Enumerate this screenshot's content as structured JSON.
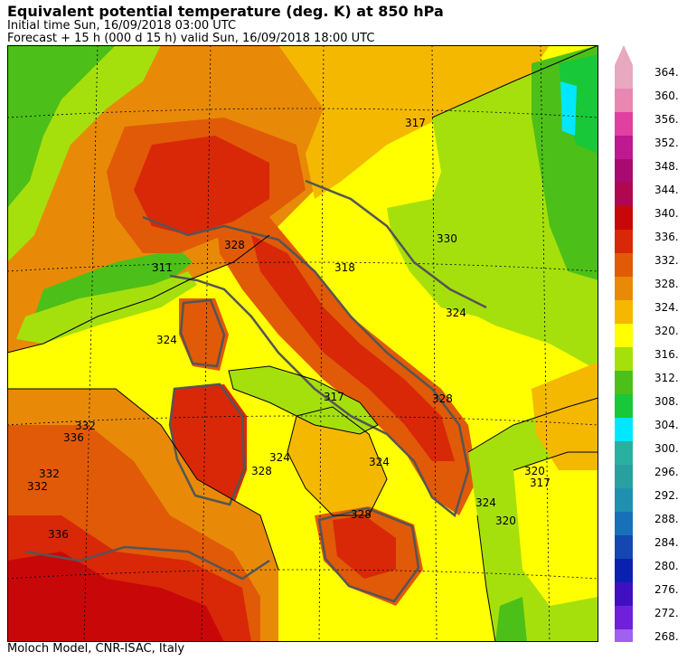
{
  "title": "Equivalent potential temperature (deg. K) at 850 hPa",
  "initial_time": "Initial time  Sun, 16/09/2018  03:00 UTC",
  "forecast": "Forecast  +  15 h  (000 d 15 h)  valid Sun, 16/09/2018 18:00 UTC",
  "footer": "Moloch Model, CNR-ISAC, Italy",
  "colorbar": {
    "levels": [
      {
        "label": "364.",
        "color": "#e8a8c0"
      },
      {
        "label": "360.",
        "color": "#e888b0"
      },
      {
        "label": "356.",
        "color": "#e040a0"
      },
      {
        "label": "352.",
        "color": "#c01890"
      },
      {
        "label": "348.",
        "color": "#a80a70"
      },
      {
        "label": "344.",
        "color": "#b00850"
      },
      {
        "label": "340.",
        "color": "#c80808"
      },
      {
        "label": "336.",
        "color": "#d82808"
      },
      {
        "label": "332.",
        "color": "#e05a08"
      },
      {
        "label": "328.",
        "color": "#e88a08"
      },
      {
        "label": "324.",
        "color": "#f4b800"
      },
      {
        "label": "320.",
        "color": "#ffff00"
      },
      {
        "label": "316.",
        "color": "#a6e00c"
      },
      {
        "label": "312.",
        "color": "#4cc018"
      },
      {
        "label": "308.",
        "color": "#18c838"
      },
      {
        "label": "304.",
        "color": "#00e8ff"
      },
      {
        "label": "300.",
        "color": "#2ab0a0"
      },
      {
        "label": "296.",
        "color": "#28a0a0"
      },
      {
        "label": "292.",
        "color": "#2090b0"
      },
      {
        "label": "288.",
        "color": "#1870b8"
      },
      {
        "label": "284.",
        "color": "#1448b0"
      },
      {
        "label": "280.",
        "color": "#0c20b0"
      },
      {
        "label": "276.",
        "color": "#4010c0"
      },
      {
        "label": "272.",
        "color": "#7020d8"
      },
      {
        "label": "268.",
        "color": "#a060f0"
      }
    ]
  },
  "contour_labels": [
    "317",
    "311",
    "318",
    "330",
    "324",
    "328",
    "324",
    "332",
    "336",
    "317",
    "324",
    "328",
    "324",
    "332",
    "332",
    "336",
    "328",
    "320",
    "317",
    "320",
    "324",
    "328"
  ]
}
